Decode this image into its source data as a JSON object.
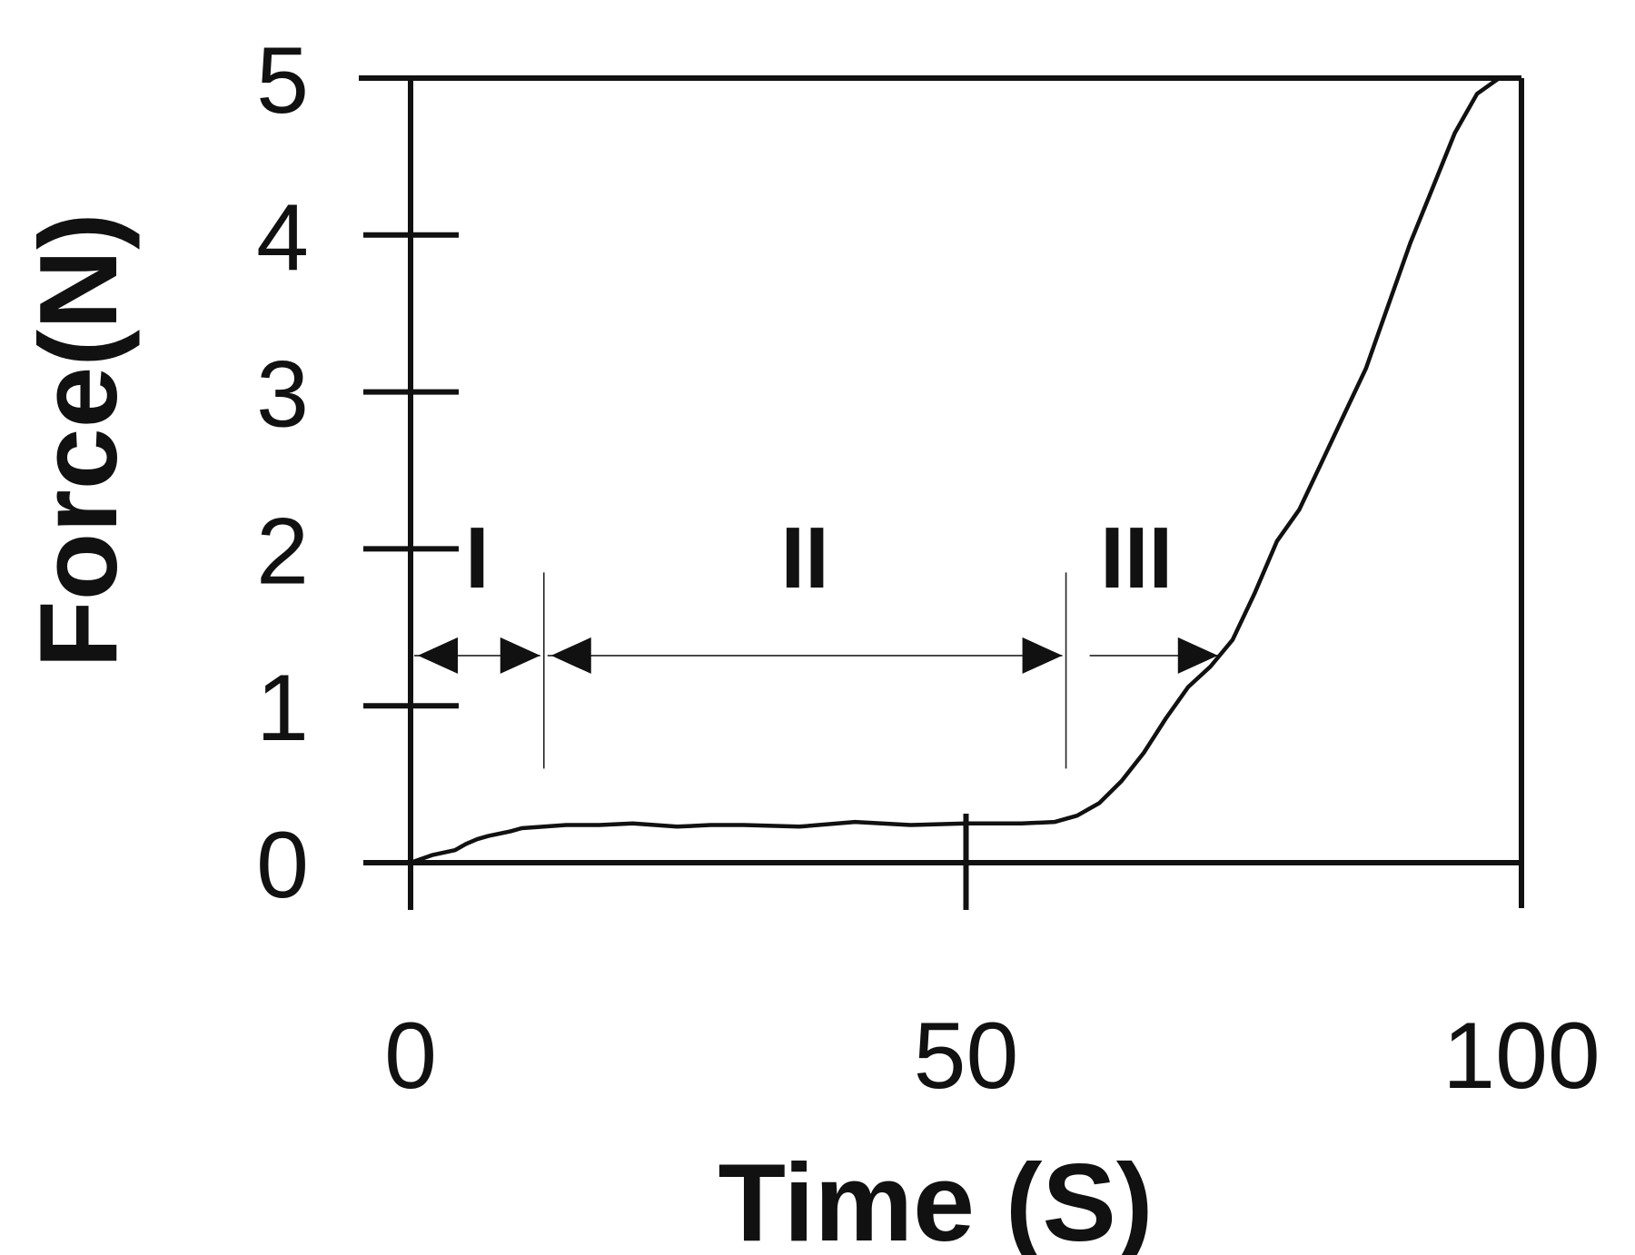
{
  "chart_data": {
    "type": "line",
    "xlabel": "Time (S)",
    "ylabel": "Force(N)",
    "xlim": [
      0,
      100
    ],
    "ylim": [
      0,
      5
    ],
    "x_ticks": [
      "0",
      "50",
      "100"
    ],
    "y_ticks": [
      "0",
      "1",
      "2",
      "3",
      "4",
      "5"
    ],
    "grid": false,
    "series": [
      {
        "x": [
          0,
          2,
          4,
          5,
          6,
          7,
          9,
          10,
          12,
          14,
          17,
          20,
          22,
          24,
          27,
          30,
          35,
          40,
          45,
          50,
          55,
          58,
          60,
          62,
          64,
          66,
          68,
          70,
          72,
          74,
          76,
          78,
          80,
          82,
          84,
          86,
          88,
          90,
          92,
          94,
          96,
          98,
          100
        ],
        "y": [
          0.0,
          0.05,
          0.08,
          0.12,
          0.15,
          0.17,
          0.2,
          0.22,
          0.23,
          0.24,
          0.24,
          0.25,
          0.24,
          0.23,
          0.24,
          0.24,
          0.23,
          0.26,
          0.24,
          0.25,
          0.25,
          0.26,
          0.3,
          0.38,
          0.52,
          0.7,
          0.92,
          1.12,
          1.25,
          1.42,
          1.72,
          2.05,
          2.25,
          2.55,
          2.85,
          3.15,
          3.55,
          3.95,
          4.3,
          4.65,
          4.9,
          5.0,
          5.0
        ]
      }
    ],
    "annotations": [
      {
        "label": "I",
        "from": 0,
        "to": 12
      },
      {
        "label": "II",
        "from": 12,
        "to": 59
      },
      {
        "label": "III",
        "from": 59,
        "to": 73
      }
    ]
  }
}
